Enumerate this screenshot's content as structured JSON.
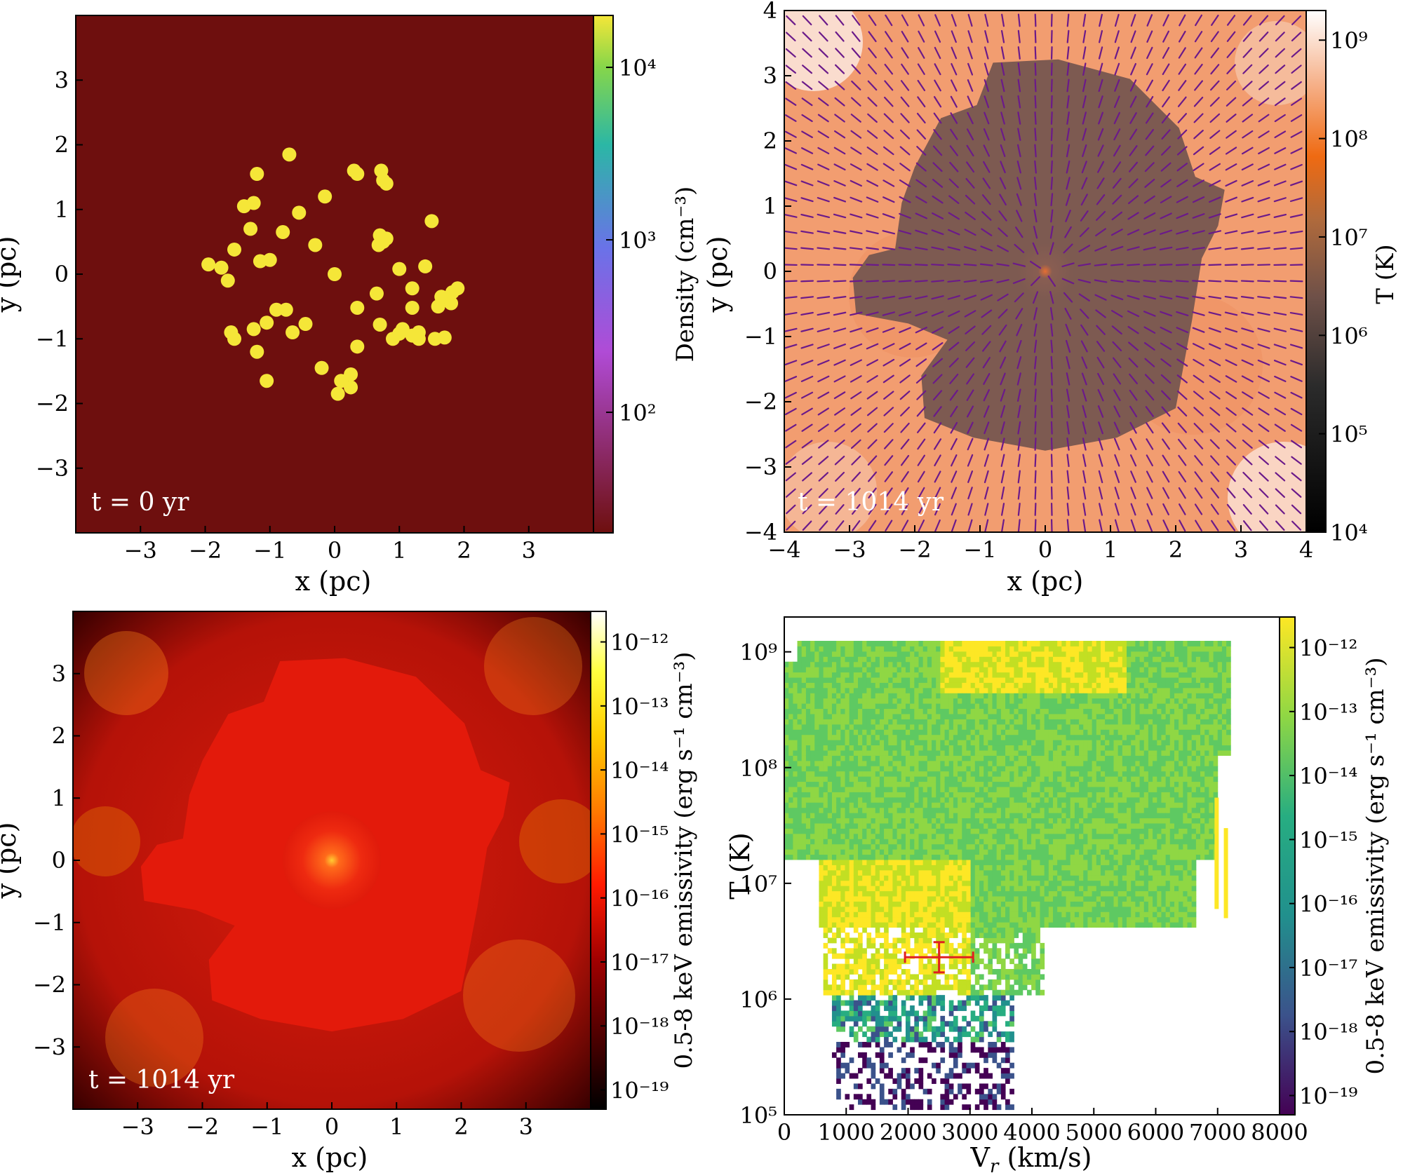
{
  "chart_data": [
    {
      "panel": "a",
      "type": "scatter",
      "xlabel": "x  (pc)",
      "ylabel": "y  (pc)",
      "xlim": [
        -4,
        4
      ],
      "ylim": [
        -4,
        4
      ],
      "x_ticks": [
        -3,
        -2,
        -1,
        0,
        1,
        2,
        3
      ],
      "y_ticks": [
        -3,
        -2,
        -1,
        0,
        1,
        2,
        3
      ],
      "background_color": "#6e0f0e",
      "point_color": "#f5e638",
      "annotation": "t = 0 yr",
      "points": [
        [
          -0.7,
          1.85
        ],
        [
          -1.2,
          1.55
        ],
        [
          -1.4,
          1.05
        ],
        [
          -1.25,
          1.1
        ],
        [
          -0.55,
          0.95
        ],
        [
          -0.15,
          1.2
        ],
        [
          0.3,
          1.6
        ],
        [
          0.35,
          1.55
        ],
        [
          0.72,
          1.6
        ],
        [
          0.75,
          1.45
        ],
        [
          0.8,
          1.4
        ],
        [
          1.5,
          0.82
        ],
        [
          -1.3,
          0.7
        ],
        [
          -1.55,
          0.38
        ],
        [
          -0.8,
          0.65
        ],
        [
          -0.3,
          0.45
        ],
        [
          0.7,
          0.6
        ],
        [
          0.75,
          0.5
        ],
        [
          0.8,
          0.55
        ],
        [
          0.68,
          0.45
        ],
        [
          -1.95,
          0.15
        ],
        [
          -1.75,
          0.1
        ],
        [
          -1.65,
          -0.1
        ],
        [
          -1.15,
          0.2
        ],
        [
          -1.0,
          0.22
        ],
        [
          0.0,
          0.0
        ],
        [
          1.0,
          0.08
        ],
        [
          1.4,
          0.12
        ],
        [
          1.82,
          -0.28
        ],
        [
          1.9,
          -0.22
        ],
        [
          1.65,
          -0.35
        ],
        [
          1.8,
          -0.45
        ],
        [
          0.65,
          -0.3
        ],
        [
          1.2,
          -0.22
        ],
        [
          1.2,
          -0.52
        ],
        [
          1.6,
          -0.5
        ],
        [
          -0.9,
          -0.55
        ],
        [
          -0.75,
          -0.55
        ],
        [
          -0.45,
          -0.77
        ],
        [
          -0.65,
          -0.9
        ],
        [
          -1.6,
          -0.9
        ],
        [
          -1.55,
          -1.0
        ],
        [
          -1.25,
          -0.85
        ],
        [
          -1.05,
          -0.75
        ],
        [
          0.35,
          -0.52
        ],
        [
          0.7,
          -0.78
        ],
        [
          1.0,
          -0.92
        ],
        [
          0.9,
          -1.0
        ],
        [
          1.05,
          -0.85
        ],
        [
          1.2,
          -0.95
        ],
        [
          1.3,
          -0.9
        ],
        [
          1.3,
          -1.0
        ],
        [
          1.55,
          -1.0
        ],
        [
          1.7,
          -0.98
        ],
        [
          -1.2,
          -1.2
        ],
        [
          0.35,
          -1.12
        ],
        [
          -0.2,
          -1.45
        ],
        [
          -1.05,
          -1.65
        ],
        [
          0.25,
          -1.55
        ],
        [
          0.1,
          -1.65
        ],
        [
          0.25,
          -1.75
        ],
        [
          0.05,
          -1.85
        ]
      ],
      "colorbar": {
        "label": "Density (cm⁻³)",
        "scale": "log",
        "range": [
          20,
          20000
        ],
        "ticks": [
          "10²",
          "10³",
          "10⁴"
        ],
        "colormap": "plasma-like"
      }
    },
    {
      "panel": "b",
      "type": "heatmap",
      "xlabel": "x  (pc)",
      "ylabel": "y  (pc)",
      "xlim": [
        -4,
        4
      ],
      "ylim": [
        -4,
        4
      ],
      "x_ticks": [
        -4,
        -3,
        -2,
        -1,
        0,
        1,
        2,
        3,
        4
      ],
      "y_ticks": [
        -4,
        -3,
        -2,
        -1,
        0,
        1,
        2,
        3,
        4
      ],
      "annotation": "t = 1014 yr",
      "inner_region_color": "#7d5a51",
      "outer_region_color": "#f09866",
      "arrow_color": "#6b1a8a",
      "inner_region_boundary": [
        [
          -0.8,
          3.2
        ],
        [
          0.2,
          3.25
        ],
        [
          1.3,
          2.95
        ],
        [
          2.05,
          2.2
        ],
        [
          2.3,
          1.45
        ],
        [
          2.75,
          1.25
        ],
        [
          2.65,
          0.7
        ],
        [
          2.4,
          0.2
        ],
        [
          2.25,
          -0.75
        ],
        [
          2.0,
          -2.1
        ],
        [
          1.1,
          -2.55
        ],
        [
          0.0,
          -2.75
        ],
        [
          -1.1,
          -2.55
        ],
        [
          -1.85,
          -2.25
        ],
        [
          -1.9,
          -1.6
        ],
        [
          -1.5,
          -1.05
        ],
        [
          -2.1,
          -0.8
        ],
        [
          -2.9,
          -0.65
        ],
        [
          -2.95,
          -0.1
        ],
        [
          -2.7,
          0.25
        ],
        [
          -2.3,
          0.35
        ],
        [
          -2.2,
          1.05
        ],
        [
          -2.0,
          1.6
        ],
        [
          -1.6,
          2.35
        ],
        [
          -1.05,
          2.55
        ]
      ],
      "colorbar": {
        "label": "T (K)",
        "scale": "log",
        "range": [
          10000,
          2000000000
        ],
        "ticks": [
          "10⁴",
          "10⁵",
          "10⁶",
          "10⁷",
          "10⁸",
          "10⁹"
        ],
        "colormap": "gist_heat-like"
      }
    },
    {
      "panel": "c",
      "type": "heatmap",
      "xlabel": "x  (pc)",
      "ylabel": "y  (pc)",
      "xlim": [
        -4,
        4
      ],
      "ylim": [
        -4,
        4
      ],
      "x_ticks": [
        -3,
        -2,
        -1,
        0,
        1,
        2,
        3
      ],
      "y_ticks": [
        -3,
        -2,
        -1,
        0,
        1,
        2,
        3
      ],
      "annotation": "t = 1014 yr",
      "inner_region_color": "#e31a0b",
      "shell_color": "#c01107",
      "inner_region_boundary": [
        [
          -0.8,
          3.2
        ],
        [
          0.2,
          3.25
        ],
        [
          1.3,
          2.95
        ],
        [
          2.05,
          2.2
        ],
        [
          2.3,
          1.45
        ],
        [
          2.75,
          1.25
        ],
        [
          2.65,
          0.7
        ],
        [
          2.4,
          0.2
        ],
        [
          2.25,
          -0.75
        ],
        [
          2.0,
          -2.1
        ],
        [
          1.1,
          -2.55
        ],
        [
          0.0,
          -2.75
        ],
        [
          -1.1,
          -2.55
        ],
        [
          -1.85,
          -2.25
        ],
        [
          -1.9,
          -1.6
        ],
        [
          -1.5,
          -1.05
        ],
        [
          -2.1,
          -0.8
        ],
        [
          -2.9,
          -0.65
        ],
        [
          -2.95,
          -0.1
        ],
        [
          -2.7,
          0.25
        ],
        [
          -2.3,
          0.35
        ],
        [
          -2.2,
          1.05
        ],
        [
          -2.0,
          1.6
        ],
        [
          -1.6,
          2.35
        ],
        [
          -1.05,
          2.55
        ]
      ],
      "colorbar": {
        "label": "0.5-8 keV emissivity (erg s⁻¹ cm⁻³)",
        "scale": "log",
        "range": [
          5e-20,
          3e-12
        ],
        "ticks": [
          "10⁻¹⁹",
          "10⁻¹⁸",
          "10⁻¹⁷",
          "10⁻¹⁶",
          "10⁻¹⁵",
          "10⁻¹⁴",
          "10⁻¹³",
          "10⁻¹²"
        ],
        "colormap": "hot"
      }
    },
    {
      "panel": "d",
      "type": "heatmap",
      "xlabel": "Vr (km/s)",
      "ylabel": "T (K)",
      "xlim": [
        0,
        8000
      ],
      "ylim": [
        100000,
        2000000000
      ],
      "yscale": "log",
      "x_ticks": [
        0,
        1000,
        2000,
        3000,
        4000,
        5000,
        6000,
        7000,
        8000
      ],
      "y_ticks": [
        "10⁵",
        "10⁶",
        "10⁷",
        "10⁸",
        "10⁹"
      ],
      "error_bar": {
        "x": 2500,
        "y": 2300000,
        "xerr": 550,
        "yerr_low": 1700000,
        "yerr_high": 3100000,
        "color": "#e02020"
      },
      "colorbar": {
        "label": "0.5-8 keV emissivity (erg s⁻¹ cm⁻³)",
        "scale": "log",
        "range": [
          5e-20,
          3e-12
        ],
        "ticks": [
          "10⁻¹⁹",
          "10⁻¹⁸",
          "10⁻¹⁷",
          "10⁻¹⁶",
          "10⁻¹⁵",
          "10⁻¹⁴",
          "10⁻¹³",
          "10⁻¹²"
        ],
        "colormap": "viridis"
      }
    }
  ]
}
